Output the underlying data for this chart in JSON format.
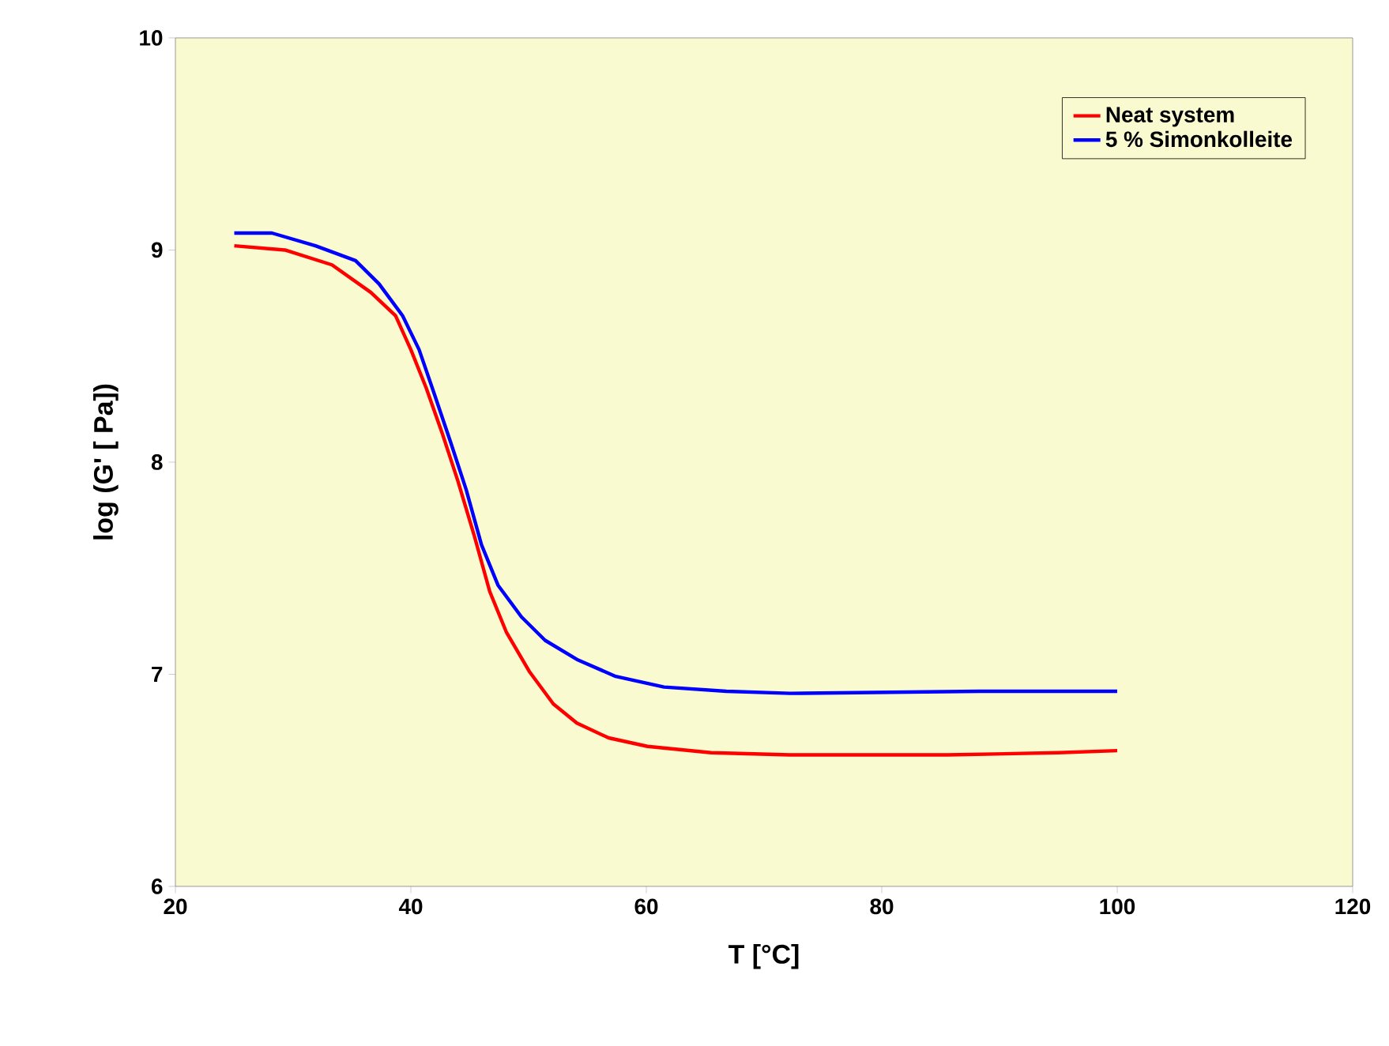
{
  "chart_data": {
    "type": "line",
    "xlabel": "T [°C]",
    "ylabel": "log (G' [ Pa])",
    "xlim": [
      20,
      120
    ],
    "xticks": [
      20,
      40,
      60,
      80,
      100,
      120
    ],
    "ylim": [
      6,
      10
    ],
    "yticks": [
      6,
      7,
      8,
      9,
      10
    ],
    "grid": false,
    "legend": "top right",
    "marker": "none",
    "line_style": "solid",
    "series": [
      {
        "name": "Neat system",
        "color": "#ff0000",
        "x": [
          25,
          29.3,
          33.3,
          36.6,
          38.7,
          40,
          41.3,
          42.7,
          44,
          45.4,
          46.7,
          48.1,
          50.1,
          52.1,
          54.1,
          56.8,
          60.1,
          65.5,
          72.2,
          85.6,
          95,
          100
        ],
        "values": [
          9.02,
          9.0,
          8.93,
          8.8,
          8.69,
          8.53,
          8.35,
          8.13,
          7.91,
          7.65,
          7.39,
          7.2,
          7.01,
          6.86,
          6.77,
          6.7,
          6.66,
          6.63,
          6.62,
          6.62,
          6.63,
          6.64
        ]
      },
      {
        "name": "5 % Simonkolleite",
        "color": "#0000ff",
        "x": [
          25,
          28.2,
          31.9,
          35.3,
          37.3,
          39.3,
          40.7,
          42,
          43.4,
          44.7,
          46,
          47.4,
          49.4,
          51.4,
          54.1,
          57.4,
          61.5,
          66.8,
          72.2,
          88.3,
          100
        ],
        "values": [
          9.08,
          9.08,
          9.02,
          8.95,
          8.84,
          8.69,
          8.53,
          8.32,
          8.09,
          7.87,
          7.61,
          7.42,
          7.27,
          7.16,
          7.07,
          6.99,
          6.94,
          6.92,
          6.91,
          6.92,
          6.92
        ]
      }
    ]
  }
}
